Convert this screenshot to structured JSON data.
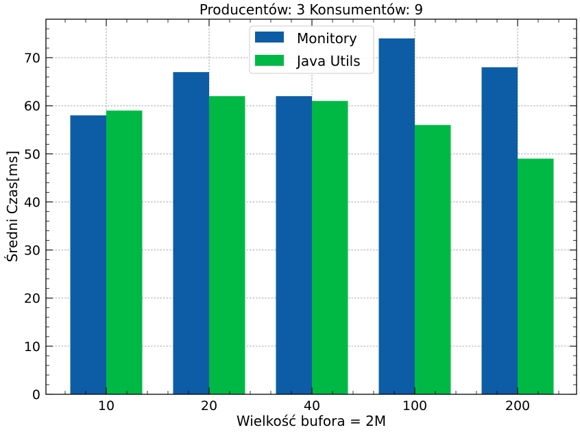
{
  "chart_data": {
    "type": "bar",
    "title": "Producentów: 3 Konsumentów: 9",
    "xlabel": "Wielkość bufora = 2M",
    "ylabel": "Średni Czas[ms]",
    "categories": [
      "10",
      "20",
      "40",
      "100",
      "200"
    ],
    "series": [
      {
        "name": "Monitory",
        "color": "#0c5da5",
        "values": [
          58,
          67,
          62,
          74,
          68
        ]
      },
      {
        "name": "Java Utils",
        "color": "#00b945",
        "values": [
          59,
          62,
          61,
          56,
          49
        ]
      }
    ],
    "ylim": [
      0,
      78
    ],
    "yticks": [
      "0",
      "10",
      "20",
      "30",
      "40",
      "50",
      "60",
      "70"
    ],
    "grid": true,
    "legend": "top-center"
  }
}
